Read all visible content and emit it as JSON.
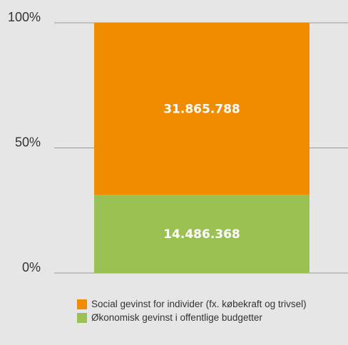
{
  "chart_data": {
    "type": "bar",
    "stacked": true,
    "normalized": true,
    "categories": [
      ""
    ],
    "ylim": [
      0,
      100
    ],
    "yticks": [
      0,
      50,
      100
    ],
    "ytick_labels": [
      "0%",
      "50%",
      "100%"
    ],
    "grid": true,
    "legend_position": "bottom",
    "series": [
      {
        "name": "Økonomisk gevinst i offentlige budgetter",
        "values": [
          14486368
        ],
        "value_label": "14.486.368",
        "color": "#9bc154"
      },
      {
        "name": "Social gevinst for individer (fx. købekraft og trivsel)",
        "values": [
          31865788
        ],
        "value_label": "31.865.788",
        "color": "#f08c00"
      }
    ]
  }
}
